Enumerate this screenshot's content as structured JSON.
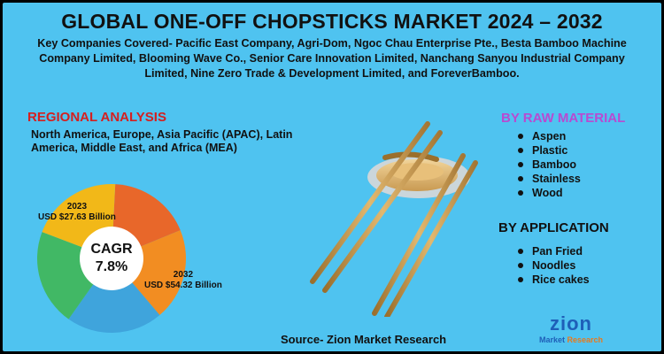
{
  "title": "GLOBAL ONE-OFF CHOPSTICKS MARKET 2024 – 2032",
  "companies": {
    "line1": "Key Companies Covered- Pacific East Company, Agri-Dom, Ngoc Chau Enterprise Pte., Besta Bamboo Machine",
    "line2": "Company Limited, Blooming Wave Co., Senior Care Innovation Limited, Nanchang Sanyou Industrial Company",
    "line3": "Limited, Nine Zero Trade & Development Limited, and ForeverBamboo."
  },
  "regional": {
    "title": "REGIONAL ANALYSIS",
    "text": "North America, Europe, Asia Pacific (APAC), Latin America, Middle East, and Africa (MEA)"
  },
  "chart_data": {
    "type": "pie",
    "center_label": "CAGR",
    "center_value": "7.8%",
    "annotations": [
      {
        "year": "2023",
        "value": "USD $27.63 Billion"
      },
      {
        "year": "2032",
        "value": "USD $54.32 Billion"
      }
    ],
    "slices": [
      {
        "color": "#e8672a",
        "share": 0.18
      },
      {
        "color": "#f28d22",
        "share": 0.2
      },
      {
        "color": "#3fa4dc",
        "share": 0.21
      },
      {
        "color": "#41b865",
        "share": 0.21
      },
      {
        "color": "#f2b818",
        "share": 0.2
      }
    ]
  },
  "raw_material": {
    "title": "BY RAW MATERIAL",
    "items": [
      "Aspen",
      "Plastic",
      "Bamboo",
      "Stainless",
      "Wood"
    ]
  },
  "application": {
    "title": "BY APPLICATION",
    "items": [
      "Pan Fried",
      "Noodles",
      "Rice cakes"
    ]
  },
  "source": "Source- Zion Market Research",
  "logo": {
    "name": "zion",
    "sub1": "Market ",
    "sub2": "Research"
  }
}
